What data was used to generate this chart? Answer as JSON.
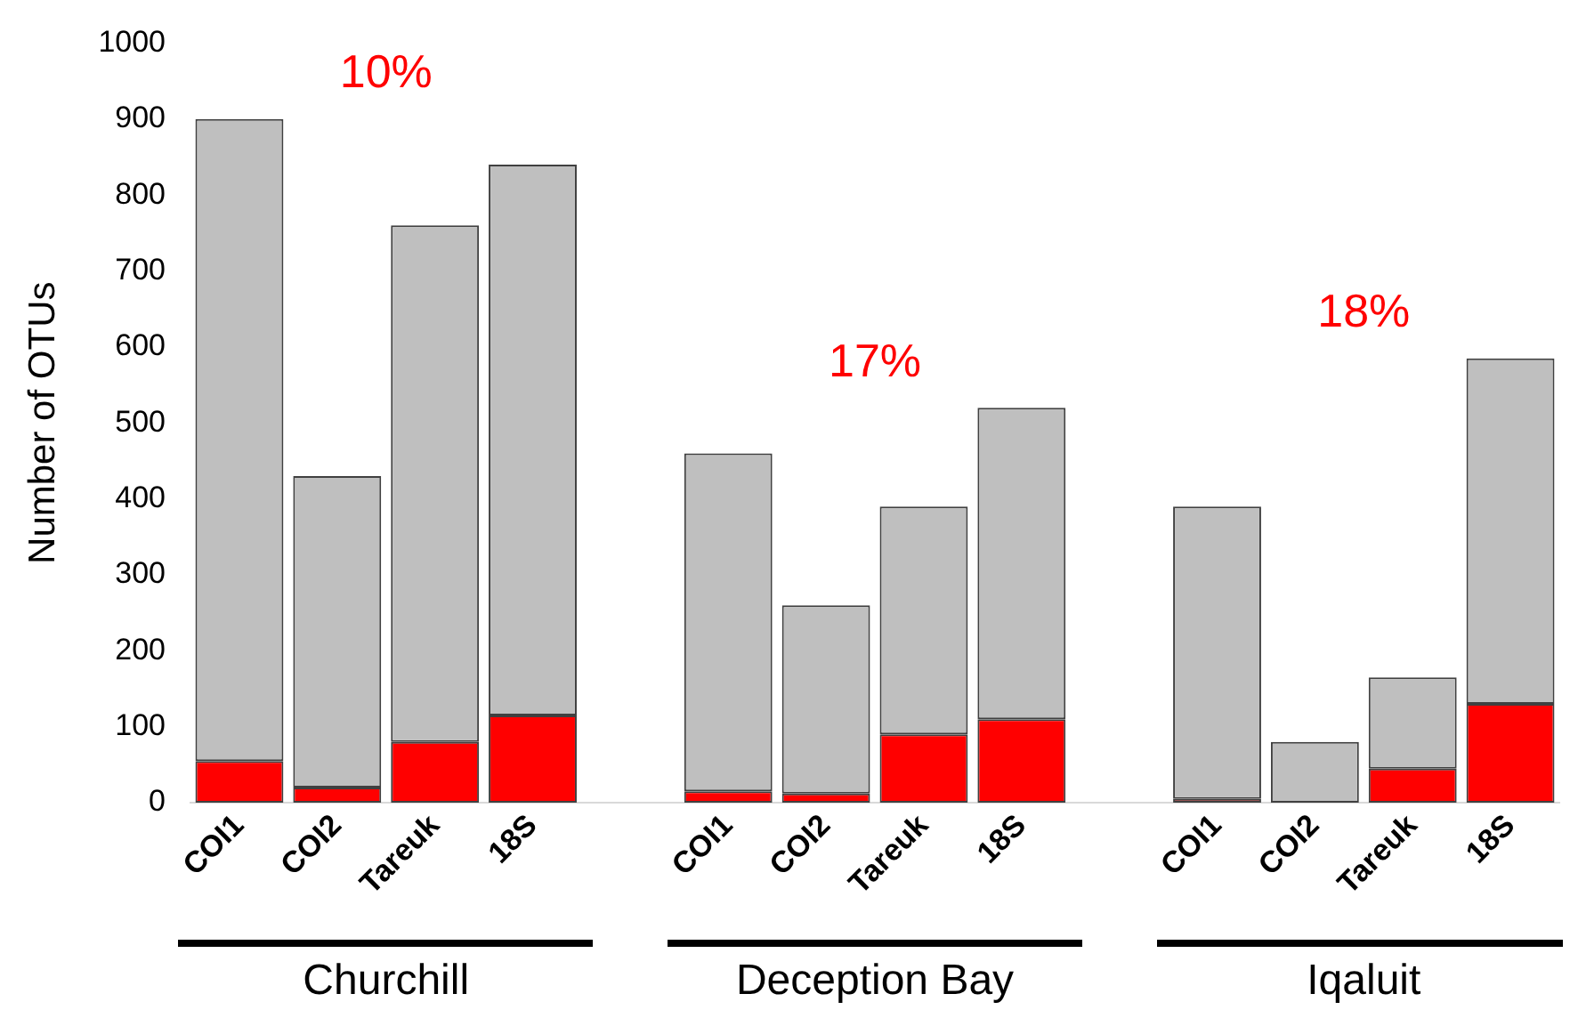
{
  "chart_data": {
    "type": "bar",
    "stacked": true,
    "ylabel": "Number of OTUs",
    "categories": [
      "COI1",
      "COI2",
      "Tareuk",
      "18S",
      null,
      "COI1",
      "COI2",
      "Tareuk",
      "18S",
      null,
      "COI1",
      "COI2",
      "Tareuk",
      "18S"
    ],
    "series": [
      {
        "color": "#ff0000",
        "values": [
          55,
          20,
          80,
          115,
          null,
          15,
          12,
          90,
          110,
          null,
          5,
          0,
          45,
          130
        ]
      },
      {
        "color": "#bfbfbf",
        "values": [
          845,
          410,
          680,
          725,
          null,
          445,
          248,
          300,
          410,
          null,
          385,
          80,
          120,
          455
        ]
      }
    ],
    "ylim": [
      0,
      1000
    ],
    "yticks": [
      0,
      100,
      200,
      300,
      400,
      500,
      600,
      700,
      800,
      900,
      1000
    ],
    "grid": false,
    "legend": false,
    "annotations": [
      "10%",
      "17%",
      "18%",
      "Churchill",
      "Deception Bay",
      "Iqaluit"
    ]
  }
}
